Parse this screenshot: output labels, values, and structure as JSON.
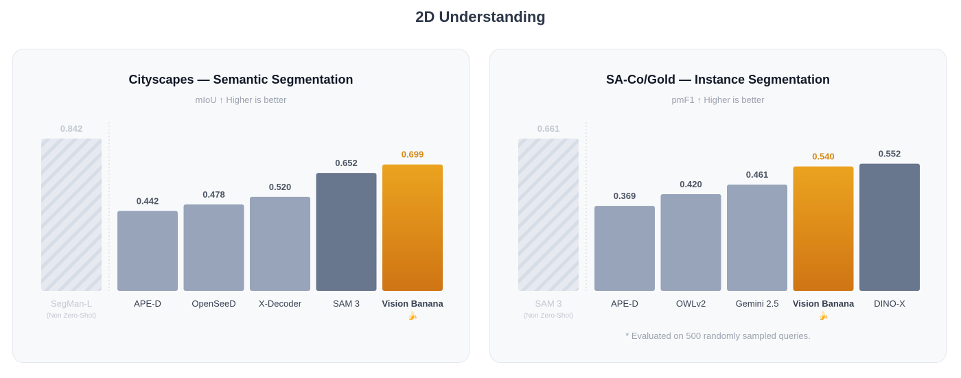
{
  "page": {
    "title": "2D Understanding"
  },
  "colors": {
    "reference_fill": "#e6eaf0",
    "reference_stripe": "#d7dde6",
    "reference_text": "#c3c9d2",
    "bar_light": "#97a4b9",
    "bar_dark": "#68768e",
    "highlight_top": "#eba31f",
    "highlight_bottom": "#cf7514",
    "highlight_text": "#d58a14",
    "value_text": "#4b5563",
    "label_text": "#374151"
  },
  "chart_data": [
    {
      "type": "bar",
      "title": "Cityscapes — Semantic Segmentation",
      "subtitle": "mIoU ↑ Higher is better",
      "ylim": [
        0,
        0.842
      ],
      "footnote": "",
      "bars": [
        {
          "label": "SegMan-L",
          "sublabel": "(Non Zero-Shot)",
          "value": 0.842,
          "value_text": "0.842",
          "style": "reference",
          "emoji": ""
        },
        {
          "label": "APE-D",
          "sublabel": "",
          "value": 0.442,
          "value_text": "0.442",
          "style": "light",
          "emoji": ""
        },
        {
          "label": "OpenSeeD",
          "sublabel": "",
          "value": 0.478,
          "value_text": "0.478",
          "style": "light",
          "emoji": ""
        },
        {
          "label": "X-Decoder",
          "sublabel": "",
          "value": 0.52,
          "value_text": "0.520",
          "style": "light",
          "emoji": ""
        },
        {
          "label": "SAM 3",
          "sublabel": "",
          "value": 0.652,
          "value_text": "0.652",
          "style": "dark",
          "emoji": ""
        },
        {
          "label": "Vision Banana",
          "sublabel": "",
          "value": 0.699,
          "value_text": "0.699",
          "style": "highlight",
          "emoji": "🍌"
        }
      ]
    },
    {
      "type": "bar",
      "title": "SA-Co/Gold — Instance Segmentation",
      "subtitle": "pmF1 ↑ Higher is better",
      "ylim": [
        0,
        0.661
      ],
      "footnote": "* Evaluated on 500 randomly sampled queries.",
      "bars": [
        {
          "label": "SAM 3",
          "sublabel": "(Non Zero-Shot)",
          "value": 0.661,
          "value_text": "0.661",
          "style": "reference",
          "emoji": ""
        },
        {
          "label": "APE-D",
          "sublabel": "",
          "value": 0.369,
          "value_text": "0.369",
          "style": "light",
          "emoji": ""
        },
        {
          "label": "OWLv2",
          "sublabel": "",
          "value": 0.42,
          "value_text": "0.420",
          "style": "light",
          "emoji": ""
        },
        {
          "label": "Gemini 2.5",
          "sublabel": "",
          "value": 0.461,
          "value_text": "0.461",
          "style": "light",
          "emoji": ""
        },
        {
          "label": "Vision Banana",
          "sublabel": "",
          "value": 0.54,
          "value_text": "0.540",
          "style": "highlight",
          "emoji": "🍌"
        },
        {
          "label": "DINO-X",
          "sublabel": "",
          "value": 0.552,
          "value_text": "0.552",
          "style": "dark",
          "emoji": ""
        }
      ]
    }
  ]
}
